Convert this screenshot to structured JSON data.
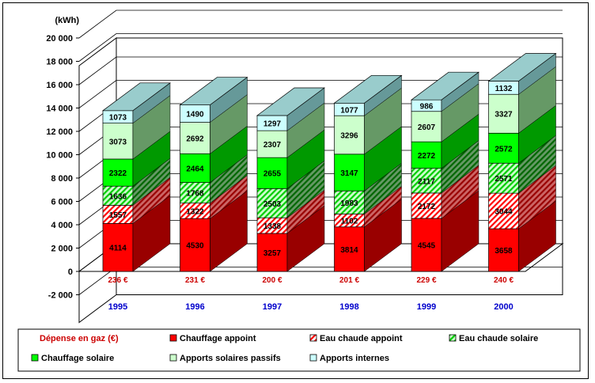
{
  "chart_data": {
    "type": "bar",
    "stacked": true,
    "style": "3d",
    "unit_label": "(kWh)",
    "ylim": [
      -2000,
      20000
    ],
    "yticks": [
      -2000,
      0,
      2000,
      4000,
      6000,
      8000,
      10000,
      12000,
      14000,
      16000,
      18000,
      20000
    ],
    "ytick_labels": [
      "-2 000",
      "0",
      "2 000",
      "4 000",
      "6 000",
      "8 000",
      "10 000",
      "12 000",
      "14 000",
      "16 000",
      "18 000",
      "20 000"
    ],
    "categories": [
      "1995",
      "1996",
      "1997",
      "1998",
      "1999",
      "2000"
    ],
    "gas_label": "Dépense en gaz (€)",
    "gas_values": [
      "236 €",
      "231 €",
      "200 €",
      "201 €",
      "229 €",
      "240 €"
    ],
    "series": [
      {
        "name": "Chauffage appoint",
        "values": [
          4114,
          4530,
          3257,
          3814,
          4545,
          3658
        ],
        "color": "#ff0000",
        "side": "#990000",
        "pattern": "solid"
      },
      {
        "name": "Eau chaude appoint",
        "values": [
          1557,
          1322,
          1338,
          1102,
          2172,
          3044
        ],
        "color": "#ff0000",
        "side": "#990000",
        "pattern": "hatch"
      },
      {
        "name": "Eau chaude solaire",
        "values": [
          1636,
          1768,
          2503,
          1983,
          2117,
          2571
        ],
        "color": "#00cc00",
        "side": "#006600",
        "pattern": "hatch"
      },
      {
        "name": "Chauffage solaire",
        "values": [
          2322,
          2464,
          2655,
          3147,
          2272,
          2572
        ],
        "color": "#00ff00",
        "side": "#009900",
        "pattern": "solid"
      },
      {
        "name": "Apports solaires passifs",
        "values": [
          3073,
          2692,
          2307,
          3296,
          2607,
          3327
        ],
        "color": "#ccffcc",
        "side": "#669966",
        "pattern": "solid"
      },
      {
        "name": "Apports internes",
        "values": [
          1073,
          1490,
          1297,
          1077,
          986,
          1132
        ],
        "color": "#ccffff",
        "side": "#669999",
        "pattern": "solid"
      }
    ],
    "top_color": "#99cccc",
    "gas_color": "#cc0000",
    "year_color": "#0000cc",
    "legend_position": "bottom"
  }
}
